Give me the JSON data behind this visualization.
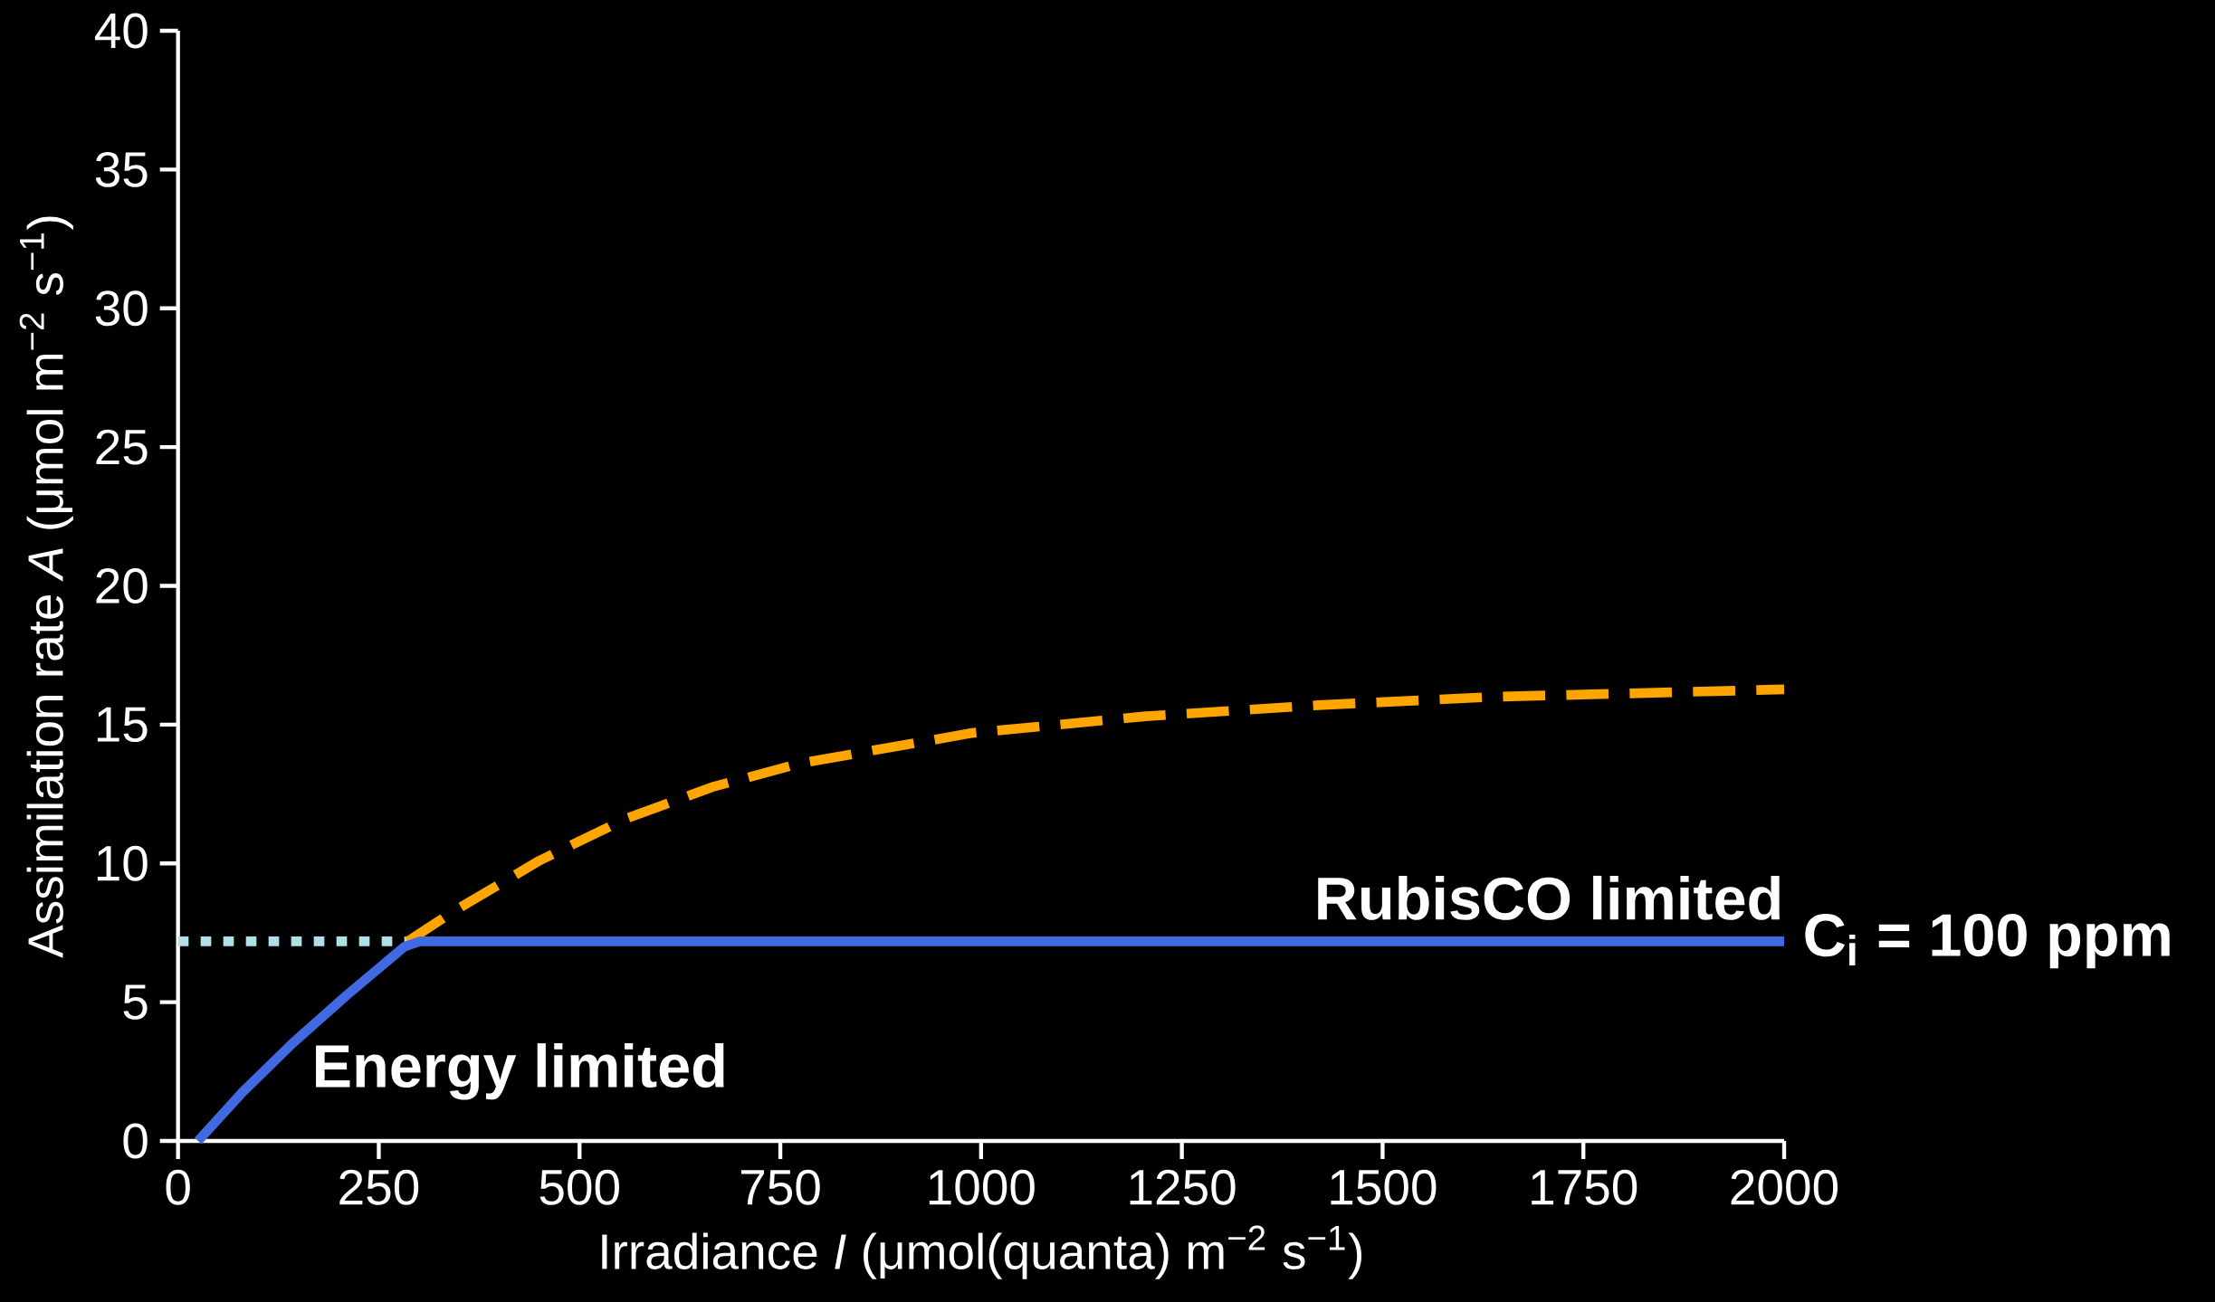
{
  "chart_data": {
    "type": "line",
    "xlabel": "Irradiance *I* (μmol(quanta) m$^{−2}$ s$^{−1}$)",
    "ylabel": "Assimilation rate *A* (μmol m$^{−2}$ s$^{−1}$)",
    "xlim": [
      0,
      2000
    ],
    "ylim": [
      0,
      40
    ],
    "xticks": [
      0,
      250,
      500,
      750,
      1000,
      1250,
      1500,
      1750,
      2000
    ],
    "yticks": [
      0,
      5,
      10,
      15,
      20,
      25,
      30,
      35,
      40
    ],
    "grid": false,
    "marker": "none",
    "series": [
      {
        "color": "#b0e0e6",
        "line_style": "dotted",
        "x": [
          0,
          286
        ],
        "values": [
          7.19,
          7.19
        ]
      },
      {
        "color": "#ffa500",
        "line_style": "dashed",
        "x": [
          286,
          342,
          450,
          557,
          665,
          774,
          989,
          1205,
          1420,
          1636,
          2000
        ],
        "values": [
          7.19,
          8.25,
          10.1,
          11.6,
          12.75,
          13.6,
          14.7,
          15.3,
          15.7,
          16.0,
          16.27
        ]
      },
      {
        "color": "#4169e1",
        "line_style": "solid",
        "x": [
          25,
          80,
          143,
          210,
          282,
          301,
          2000
        ],
        "values": [
          0,
          1.75,
          3.53,
          5.25,
          7.0,
          7.19,
          7.19
        ]
      }
    ],
    "annotations": [
      "Energy limited",
      "RubisCO limited",
      "C$_{i}$ = 100 ppm"
    ]
  }
}
